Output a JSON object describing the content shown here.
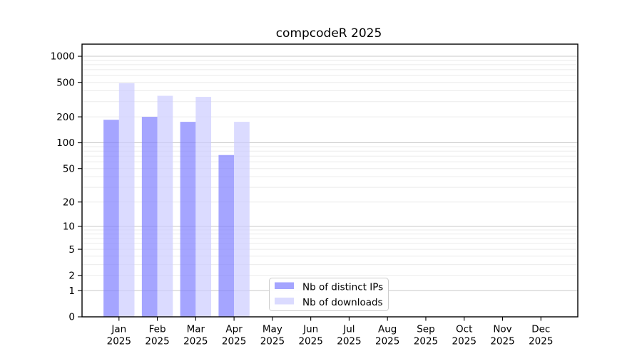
{
  "title": "compcodeR 2025",
  "colors": {
    "background": "#ffffff",
    "axis": "#000000",
    "grid_major": "#c9c9c9",
    "grid_minor": "#ebebeb",
    "legend_border": "#cccccc",
    "legend_background": "#ffffff"
  },
  "chart_data": {
    "type": "bar",
    "title": "compcodeR 2025",
    "categories": [
      "Jan",
      "Feb",
      "Mar",
      "Apr",
      "May",
      "Jun",
      "Jul",
      "Aug",
      "Sep",
      "Oct",
      "Nov",
      "Dec"
    ],
    "year_label": "2025",
    "series": [
      {
        "name": "Nb of distinct IPs",
        "color": "rgba(127,127,255,0.7)",
        "values": [
          185,
          200,
          175,
          72,
          0,
          0,
          0,
          0,
          0,
          0,
          0,
          0
        ]
      },
      {
        "name": "Nb of downloads",
        "color": "rgba(204,204,255,0.7)",
        "values": [
          490,
          350,
          340,
          175,
          0,
          0,
          0,
          0,
          0,
          0,
          0,
          0
        ]
      }
    ],
    "xlabel": "",
    "ylabel": "",
    "y_scale": "log1p",
    "y_ticks": [
      0,
      1,
      2,
      5,
      10,
      20,
      50,
      100,
      200,
      500,
      1000
    ],
    "ylim": [
      0,
      1380
    ],
    "grid": {
      "orientation": "horizontal",
      "major": [
        1,
        10,
        100,
        1000
      ],
      "minor": [
        2,
        3,
        4,
        5,
        6,
        7,
        8,
        9,
        20,
        30,
        40,
        50,
        60,
        70,
        80,
        90,
        200,
        300,
        400,
        500,
        600,
        700,
        800,
        900
      ]
    },
    "legend_position": "inside lower center-left"
  }
}
